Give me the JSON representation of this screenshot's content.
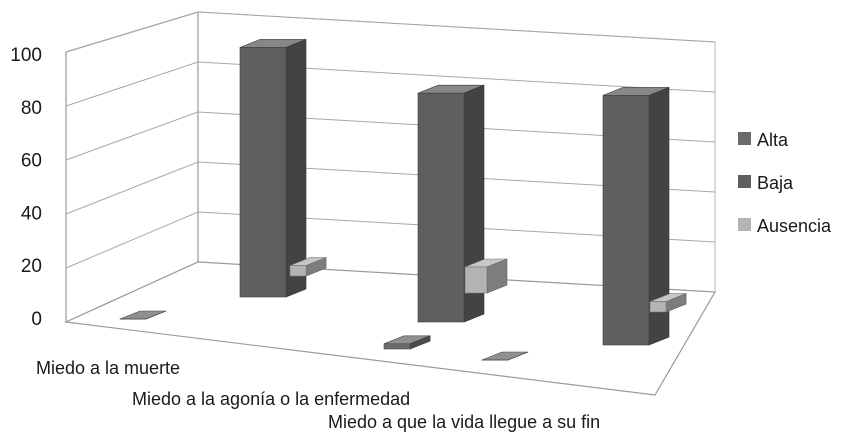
{
  "chart_data": {
    "type": "bar",
    "style": "3d-column",
    "categories": [
      "Miedo a la muerte",
      "Miedo a la agonía o la enfermedad",
      "Miedo a que la vida llegue a su fin"
    ],
    "series": [
      {
        "name": "Alta",
        "values": [
          0,
          2,
          0
        ],
        "color": "#6b6b6b"
      },
      {
        "name": "Baja",
        "values": [
          96,
          88,
          96
        ],
        "color": "#5f5f5f"
      },
      {
        "name": "Ausencia",
        "values": [
          4,
          10,
          4
        ],
        "color": "#b3b3b3"
      }
    ],
    "yticks": [
      "0",
      "20",
      "40",
      "60",
      "80",
      "100"
    ],
    "ylim": [
      0,
      100
    ],
    "grid": true,
    "legend_position": "right"
  }
}
